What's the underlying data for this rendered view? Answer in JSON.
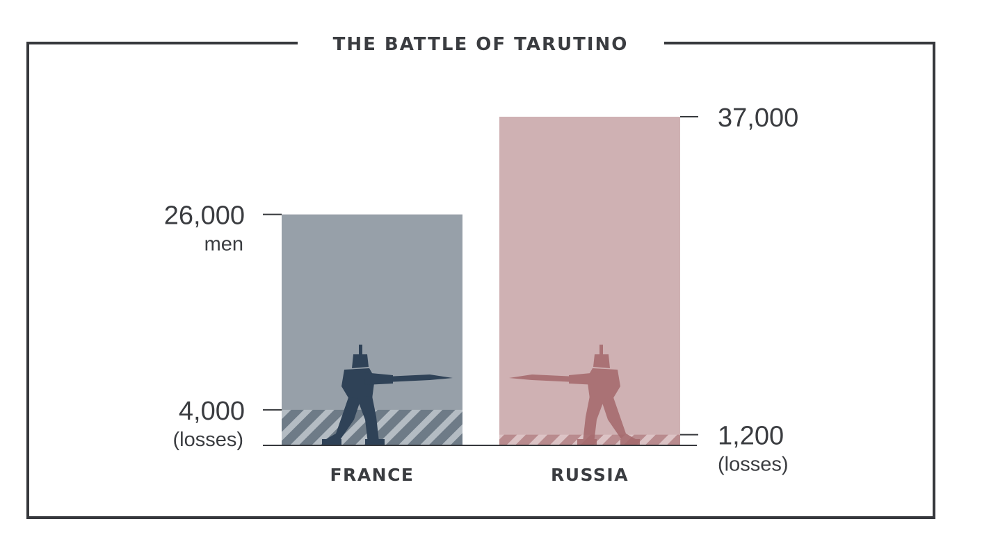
{
  "chart_data": {
    "type": "bar",
    "title": "THE BATTLE OF TARUTINO",
    "categories": [
      "FRANCE",
      "RUSSIA"
    ],
    "series": [
      {
        "values": [
          26000,
          37000
        ]
      },
      {
        "values": [
          4000,
          1200
        ]
      }
    ],
    "ylim": [
      0,
      37000
    ],
    "grid": false,
    "labels": {
      "france_total": "26,000",
      "france_total_unit": "men",
      "france_losses": "4,000",
      "france_losses_unit": "(losses)",
      "russia_total": "37,000",
      "russia_losses": "1,200",
      "russia_losses_unit": "(losses)"
    },
    "colors": {
      "france_bar": "#97a0a9",
      "france_losses": "#6e7b87",
      "france_soldier": "#2f4257",
      "russia_bar": "#cfb1b3",
      "russia_losses": "#b98b8e",
      "russia_soldier": "#a4686b",
      "frame": "#36383c",
      "text": "#3a3c40"
    },
    "icons": [
      "soldier-with-bayonet-icon"
    ]
  }
}
